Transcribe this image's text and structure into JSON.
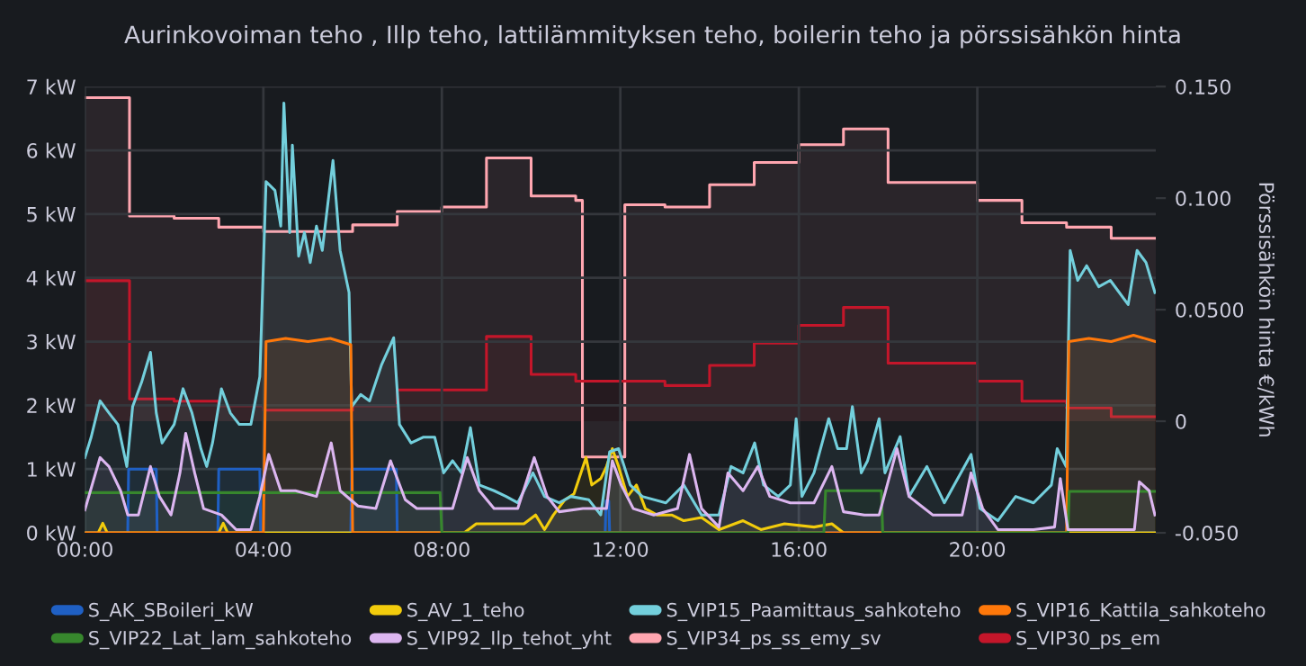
{
  "chart_data": {
    "type": "area",
    "title": "Aurinkovoiman teho , Illp teho, lattilämmityksen teho, boilerin teho ja pörssisähkön hinta",
    "y2label": "Pörssisähkön hinta €/kWh",
    "xlim": [
      0,
      24
    ],
    "xticks": [
      {
        "value": 0,
        "label": "00:00"
      },
      {
        "value": 4,
        "label": "04:00"
      },
      {
        "value": 8,
        "label": "08:00"
      },
      {
        "value": 12,
        "label": "12:00"
      },
      {
        "value": 16,
        "label": "16:00"
      },
      {
        "value": 20,
        "label": "20:00"
      }
    ],
    "ylim": [
      0,
      7
    ],
    "yticks": [
      {
        "value": 0,
        "label": "0 kW"
      },
      {
        "value": 1,
        "label": "1 kW"
      },
      {
        "value": 2,
        "label": "2 kW"
      },
      {
        "value": 3,
        "label": "3 kW"
      },
      {
        "value": 4,
        "label": "4 kW"
      },
      {
        "value": 5,
        "label": "5 kW"
      },
      {
        "value": 6,
        "label": "6 kW"
      },
      {
        "value": 7,
        "label": "7 kW"
      }
    ],
    "y2lim": [
      -0.05,
      0.15
    ],
    "y2ticks": [
      {
        "value": 0.15,
        "label": "0.150"
      },
      {
        "value": 0.1,
        "label": "0.100"
      },
      {
        "value": 0.05,
        "label": "0.0500"
      },
      0,
      {
        "value": -0.05,
        "label": "-0.050"
      }
    ],
    "grid": true,
    "legend": "bottom",
    "series": [
      {
        "name": "S_AK_SBoileri_kW",
        "color": "#1f60c4",
        "x": [
          0,
          0.96,
          0.98,
          1.6,
          1.62,
          2.98,
          3.0,
          3.92,
          3.94,
          5.96,
          5.98,
          6.98,
          7.0,
          11.66,
          11.68,
          11.74,
          11.76,
          24
        ],
        "values": [
          0,
          0,
          1.0,
          1.0,
          0,
          0,
          1.0,
          1.0,
          0,
          0,
          1.0,
          1.0,
          0,
          0,
          0.5,
          0.5,
          0,
          0
        ]
      },
      {
        "name": "S_AV_1_teho",
        "color": "#f2cc0c",
        "x": [
          0,
          0.3,
          0.4,
          0.5,
          3.0,
          3.1,
          3.2,
          8.5,
          8.77,
          9.84,
          10.1,
          10.3,
          10.5,
          10.76,
          10.96,
          11.23,
          11.36,
          11.56,
          11.69,
          11.82,
          11.96,
          12.16,
          12.36,
          12.56,
          12.82,
          13.15,
          13.42,
          13.82,
          14.21,
          14.75,
          15.15,
          15.68,
          16.34,
          16.74,
          17.0,
          24
        ],
        "values": [
          0,
          0,
          0.15,
          0,
          0,
          0.15,
          0,
          0,
          0.14,
          0.14,
          0.28,
          0.05,
          0.28,
          0.52,
          0.61,
          1.18,
          0.75,
          0.85,
          1.04,
          1.32,
          1.04,
          0.57,
          0.75,
          0.38,
          0.28,
          0.28,
          0.19,
          0.24,
          0.05,
          0.19,
          0.05,
          0.14,
          0.09,
          0.14,
          0,
          0
        ]
      },
      {
        "name": "S_VIP15_Paamittaus_sahkoteho",
        "color": "#73cfdc",
        "x": [
          0,
          0.14,
          0.34,
          0.54,
          0.74,
          0.94,
          1.07,
          1.27,
          1.47,
          1.6,
          1.73,
          2.0,
          2.2,
          2.4,
          2.6,
          2.73,
          2.86,
          3.06,
          3.26,
          3.46,
          3.72,
          3.92,
          4.06,
          4.26,
          4.39,
          4.46,
          4.59,
          4.65,
          4.79,
          4.92,
          5.05,
          5.19,
          5.32,
          5.56,
          5.72,
          5.92,
          5.98,
          6.18,
          6.38,
          6.65,
          6.92,
          7.05,
          7.31,
          7.58,
          7.84,
          8.04,
          8.24,
          8.44,
          8.64,
          8.84,
          9.17,
          9.44,
          9.7,
          10.04,
          10.3,
          10.63,
          10.89,
          11.29,
          11.56,
          11.76,
          11.96,
          12.22,
          12.49,
          13.02,
          13.42,
          13.82,
          14.21,
          14.48,
          14.75,
          15.01,
          15.21,
          15.54,
          15.81,
          15.94,
          16.07,
          16.34,
          16.67,
          16.87,
          17.07,
          17.2,
          17.4,
          17.54,
          17.8,
          17.93,
          18.27,
          18.47,
          18.87,
          19.26,
          19.86,
          20.06,
          20.46,
          20.86,
          21.26,
          21.66,
          21.79,
          21.99,
          22.08,
          22.25,
          22.45,
          22.72,
          22.98,
          23.38,
          23.58,
          23.78,
          23.98
        ],
        "values": [
          1.18,
          1.5,
          2.07,
          1.88,
          1.7,
          1.04,
          1.98,
          2.36,
          2.83,
          1.88,
          1.41,
          1.7,
          2.26,
          1.88,
          1.32,
          1.04,
          1.41,
          2.26,
          1.88,
          1.7,
          1.7,
          2.45,
          5.51,
          5.37,
          4.81,
          6.74,
          4.71,
          6.08,
          4.34,
          4.71,
          4.24,
          4.81,
          4.43,
          5.84,
          4.43,
          3.77,
          1.98,
          2.17,
          2.07,
          2.64,
          3.06,
          1.7,
          1.41,
          1.5,
          1.5,
          0.94,
          1.13,
          0.94,
          1.65,
          0.75,
          0.66,
          0.57,
          0.47,
          0.94,
          0.57,
          0.47,
          0.57,
          0.52,
          0.28,
          1.27,
          1.32,
          0.75,
          0.57,
          0.47,
          0.75,
          0.28,
          0.28,
          1.04,
          0.94,
          1.41,
          0.75,
          0.57,
          0.75,
          1.79,
          0.57,
          0.94,
          1.79,
          1.32,
          1.32,
          1.98,
          0.94,
          1.13,
          1.79,
          0.94,
          1.51,
          0.57,
          1.04,
          0.47,
          1.23,
          0.38,
          0.19,
          0.57,
          0.47,
          0.75,
          1.32,
          1.04,
          4.43,
          3.96,
          4.19,
          3.86,
          3.96,
          3.58,
          4.43,
          4.24,
          3.77
        ]
      },
      {
        "name": "S_VIP16_Kattila_sahkoteho",
        "color": "#ff780a",
        "x": [
          0,
          4.0,
          4.06,
          4.5,
          5.0,
          5.5,
          5.96,
          6.0,
          22.0,
          22.05,
          22.5,
          23.0,
          23.5,
          24
        ],
        "values": [
          0,
          0,
          3.0,
          3.05,
          3.0,
          3.05,
          2.95,
          0,
          0,
          3.0,
          3.05,
          3.0,
          3.1,
          3.0
        ]
      },
      {
        "name": "S_VIP22_Lat_lam_sahkoteho",
        "color": "#37872d",
        "x": [
          0,
          7.96,
          8.0,
          16.56,
          16.6,
          17.85,
          17.88,
          22.03,
          22.06,
          24
        ],
        "values": [
          0.63,
          0.63,
          0,
          0,
          0.66,
          0.66,
          0,
          0,
          0.65,
          0.65
        ]
      },
      {
        "name": "S_VIP92_Ilp_tehot_yht",
        "color": "#dcb6f0",
        "x": [
          0,
          0.34,
          0.54,
          0.8,
          0.96,
          1.2,
          1.47,
          1.67,
          1.93,
          2.13,
          2.26,
          2.46,
          2.66,
          3.06,
          3.39,
          3.72,
          3.92,
          4.12,
          4.39,
          4.72,
          5.19,
          5.52,
          5.72,
          6.12,
          6.52,
          6.85,
          7.18,
          7.44,
          7.84,
          8.24,
          8.57,
          8.84,
          9.17,
          9.7,
          10.07,
          10.36,
          10.63,
          11.16,
          11.69,
          11.82,
          12.02,
          12.29,
          12.75,
          13.28,
          13.55,
          13.82,
          14.21,
          14.41,
          14.75,
          15.08,
          15.35,
          15.81,
          16.34,
          16.74,
          17.0,
          17.47,
          17.8,
          18.2,
          18.47,
          19.0,
          19.66,
          19.86,
          20.12,
          20.46,
          21.26,
          21.73,
          21.86,
          22.03,
          22.86,
          23.52,
          23.63,
          23.85,
          23.98
        ],
        "values": [
          0.36,
          1.18,
          1.04,
          0.66,
          0.28,
          0.28,
          1.04,
          0.57,
          0.28,
          0.94,
          1.56,
          0.94,
          0.38,
          0.28,
          0.05,
          0.05,
          0.57,
          1.23,
          0.66,
          0.66,
          0.57,
          1.41,
          0.66,
          0.42,
          0.38,
          1.13,
          0.52,
          0.38,
          0.38,
          0.38,
          1.18,
          0.66,
          0.38,
          0.38,
          1.18,
          0.57,
          0.33,
          0.38,
          0.38,
          1.13,
          0.75,
          0.38,
          0.28,
          0.38,
          1.23,
          0.38,
          0.09,
          0.94,
          0.66,
          1.04,
          0.57,
          0.47,
          0.47,
          1.04,
          0.33,
          0.28,
          0.28,
          1.32,
          0.57,
          0.28,
          0.28,
          0.94,
          0.38,
          0.05,
          0.05,
          0.09,
          0.85,
          0.05,
          0.05,
          0.05,
          0.8,
          0.66,
          0.28
        ]
      },
      {
        "name": "S_VIP34_ps_ss_emy_sv",
        "color": "#ffa6b0",
        "axis": "y2",
        "x": [
          0,
          1,
          1,
          2,
          2,
          3,
          3,
          4,
          4,
          6,
          6,
          7,
          7,
          8,
          8,
          9,
          9,
          10,
          10,
          11,
          11,
          11.15,
          11.15,
          12.1,
          12.1,
          13,
          13,
          14,
          14,
          15,
          15,
          16,
          16,
          17,
          17,
          18,
          18,
          20,
          20,
          21,
          21,
          22,
          22,
          23,
          23,
          24
        ],
        "values": [
          0.145,
          0.145,
          0.092,
          0.092,
          0.091,
          0.091,
          0.087,
          0.087,
          0.085,
          0.085,
          0.088,
          0.088,
          0.094,
          0.094,
          0.096,
          0.096,
          0.118,
          0.118,
          0.101,
          0.101,
          0.099,
          0.099,
          -0.016,
          -0.016,
          0.097,
          0.097,
          0.096,
          0.096,
          0.106,
          0.106,
          0.116,
          0.116,
          0.124,
          0.124,
          0.131,
          0.131,
          0.107,
          0.107,
          0.099,
          0.099,
          0.089,
          0.089,
          0.087,
          0.087,
          0.082,
          0.082
        ]
      },
      {
        "name": "S_VIP30_ps_em",
        "color": "#c4162a",
        "axis": "y2",
        "x": [
          0,
          1,
          1,
          2,
          2,
          3,
          3,
          4,
          4,
          6,
          6,
          7,
          7,
          9,
          9,
          10,
          10,
          11,
          11,
          13,
          13,
          14,
          14,
          15,
          15,
          16,
          16,
          17,
          17,
          18,
          18,
          20,
          20,
          21,
          21,
          22,
          22,
          23,
          23,
          24
        ],
        "values": [
          0.063,
          0.063,
          0.01,
          0.01,
          0.009,
          0.009,
          0.007,
          0.007,
          0.005,
          0.005,
          0.007,
          0.007,
          0.014,
          0.014,
          0.038,
          0.038,
          0.021,
          0.021,
          0.018,
          0.018,
          0.016,
          0.016,
          0.025,
          0.025,
          0.035,
          0.035,
          0.043,
          0.043,
          0.051,
          0.051,
          0.026,
          0.026,
          0.018,
          0.018,
          0.009,
          0.009,
          0.006,
          0.006,
          0.002,
          0.002
        ]
      }
    ]
  }
}
